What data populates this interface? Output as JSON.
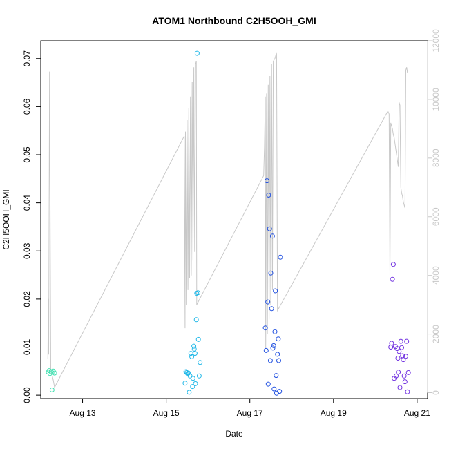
{
  "chart_data": {
    "type": "scatter",
    "title": "ATOM1 Northbound C2H5OOH_GMI",
    "xlabel": "Date",
    "ylabel": "C2H5OOH_GMI",
    "x_ticks": [
      "Aug 13",
      "Aug 15",
      "Aug 17",
      "Aug 19",
      "Aug 21"
    ],
    "x_tick_days": [
      13,
      15,
      17,
      19,
      21
    ],
    "xlim": [
      12.0,
      21.25
    ],
    "y_ticks": [
      "0.00",
      "0.01",
      "0.02",
      "0.03",
      "0.04",
      "0.05",
      "0.06",
      "0.07"
    ],
    "y_tick_values": [
      0,
      0.01,
      0.02,
      0.03,
      0.04,
      0.05,
      0.06,
      0.07
    ],
    "ylim": [
      -0.0007,
      0.0737
    ],
    "y2_ticks": [
      "0",
      "2000",
      "4000",
      "6000",
      "8000",
      "10000",
      "12000"
    ],
    "y2_tick_values": [
      0,
      2000,
      4000,
      6000,
      8000,
      10000,
      12000
    ],
    "y2lim": [
      -200,
      12000
    ],
    "grid": false,
    "colors": {
      "line": "#c8c8c8",
      "axis": "#000000",
      "right_axis": "#c8c8c8"
    },
    "series": [
      {
        "color": "#40e0b0",
        "points": [
          [
            12.18,
            0.0048
          ],
          [
            12.2,
            0.0051
          ],
          [
            12.22,
            0.0045
          ],
          [
            12.25,
            0.0049
          ],
          [
            12.27,
            0.0011
          ],
          [
            12.3,
            0.005
          ],
          [
            12.33,
            0.0046
          ]
        ]
      },
      {
        "color": "#20b8e8",
        "points": [
          [
            15.45,
            0.0025
          ],
          [
            15.47,
            0.0049
          ],
          [
            15.49,
            0.0047
          ],
          [
            15.51,
            0.0045
          ],
          [
            15.53,
            0.0046
          ],
          [
            15.55,
            0.0006
          ],
          [
            15.57,
            0.004
          ],
          [
            15.59,
            0.0087
          ],
          [
            15.61,
            0.008
          ],
          [
            15.63,
            0.0018
          ],
          [
            15.64,
            0.0035
          ],
          [
            15.66,
            0.0102
          ],
          [
            15.67,
            0.0096
          ],
          [
            15.69,
            0.0087
          ],
          [
            15.7,
            0.0024
          ],
          [
            15.72,
            0.0157
          ],
          [
            15.73,
            0.0212
          ],
          [
            15.74,
            0.0711
          ],
          [
            15.76,
            0.0213
          ],
          [
            15.77,
            0.0116
          ],
          [
            15.79,
            0.004
          ],
          [
            15.81,
            0.0068
          ]
        ]
      },
      {
        "color": "#2050e0",
        "points": [
          [
            17.37,
            0.014
          ],
          [
            17.39,
            0.0093
          ],
          [
            17.41,
            0.0446
          ],
          [
            17.43,
            0.0194
          ],
          [
            17.44,
            0.0023
          ],
          [
            17.45,
            0.0416
          ],
          [
            17.47,
            0.0346
          ],
          [
            17.49,
            0.0072
          ],
          [
            17.5,
            0.0254
          ],
          [
            17.52,
            0.018
          ],
          [
            17.54,
            0.0331
          ],
          [
            17.55,
            0.0098
          ],
          [
            17.57,
            0.0103
          ],
          [
            17.58,
            0.0013
          ],
          [
            17.6,
            0.0132
          ],
          [
            17.61,
            0.0217
          ],
          [
            17.63,
            0.0041
          ],
          [
            17.64,
            0.0004
          ],
          [
            17.66,
            0.0085
          ],
          [
            17.68,
            0.0117
          ],
          [
            17.69,
            0.0072
          ],
          [
            17.71,
            0.0008
          ],
          [
            17.73,
            0.0287
          ]
        ]
      },
      {
        "color": "#7030e0",
        "points": [
          [
            20.37,
            0.01
          ],
          [
            20.39,
            0.0108
          ],
          [
            20.41,
            0.0241
          ],
          [
            20.43,
            0.0272
          ],
          [
            20.45,
            0.0035
          ],
          [
            20.48,
            0.0101
          ],
          [
            20.5,
            0.004
          ],
          [
            20.52,
            0.0097
          ],
          [
            20.54,
            0.0077
          ],
          [
            20.55,
            0.0048
          ],
          [
            20.57,
            0.0091
          ],
          [
            20.59,
            0.0016
          ],
          [
            20.61,
            0.0112
          ],
          [
            20.63,
            0.0099
          ],
          [
            20.65,
            0.0082
          ],
          [
            20.67,
            0.0074
          ],
          [
            20.69,
            0.004
          ],
          [
            20.71,
            0.0028
          ],
          [
            20.73,
            0.0081
          ],
          [
            20.75,
            0.0112
          ],
          [
            20.77,
            0.0007
          ],
          [
            20.79,
            0.0047
          ]
        ]
      }
    ],
    "line_series": {
      "color": "#c8c8c8",
      "axis": "right",
      "points": [
        [
          12.17,
          1150
        ],
        [
          12.18,
          3200
        ],
        [
          12.19,
          1300
        ],
        [
          12.21,
          10950
        ],
        [
          12.24,
          800
        ],
        [
          12.27,
          600
        ],
        [
          12.3,
          420
        ],
        [
          12.33,
          180
        ],
        [
          15.43,
          8750
        ],
        [
          15.45,
          2200
        ],
        [
          15.46,
          8900
        ],
        [
          15.48,
          3000
        ],
        [
          15.5,
          9300
        ],
        [
          15.52,
          3500
        ],
        [
          15.54,
          9700
        ],
        [
          15.56,
          3900
        ],
        [
          15.58,
          10100
        ],
        [
          15.6,
          4000
        ],
        [
          15.62,
          10600
        ],
        [
          15.64,
          4500
        ],
        [
          15.66,
          11100
        ],
        [
          15.68,
          4800
        ],
        [
          15.7,
          11200
        ],
        [
          15.72,
          11300
        ],
        [
          15.73,
          3000
        ],
        [
          17.33,
          7400
        ],
        [
          17.35,
          8400
        ],
        [
          17.37,
          10100
        ],
        [
          17.38,
          1500
        ],
        [
          17.4,
          10200
        ],
        [
          17.42,
          2000
        ],
        [
          17.44,
          10500
        ],
        [
          17.46,
          2500
        ],
        [
          17.48,
          10800
        ],
        [
          17.5,
          3000
        ],
        [
          17.52,
          11200
        ],
        [
          17.54,
          3500
        ],
        [
          17.56,
          11300
        ],
        [
          17.58,
          11350
        ],
        [
          17.6,
          11400
        ],
        [
          17.62,
          11500
        ],
        [
          17.64,
          11550
        ],
        [
          17.66,
          2800
        ],
        [
          20.3,
          9600
        ],
        [
          20.33,
          9500
        ],
        [
          20.35,
          4000
        ],
        [
          20.37,
          9200
        ],
        [
          20.39,
          9100
        ],
        [
          20.41,
          9000
        ],
        [
          20.43,
          8800
        ],
        [
          20.45,
          8700
        ],
        [
          20.47,
          8500
        ],
        [
          20.49,
          8300
        ],
        [
          20.51,
          8100
        ],
        [
          20.53,
          7900
        ],
        [
          20.55,
          7700
        ],
        [
          20.57,
          9900
        ],
        [
          20.59,
          9800
        ],
        [
          20.61,
          7000
        ],
        [
          20.63,
          6800
        ],
        [
          20.65,
          6700
        ],
        [
          20.67,
          6500
        ],
        [
          20.69,
          6400
        ],
        [
          20.71,
          6300
        ],
        [
          20.73,
          11000
        ],
        [
          20.75,
          11100
        ],
        [
          20.77,
          10900
        ]
      ]
    }
  }
}
